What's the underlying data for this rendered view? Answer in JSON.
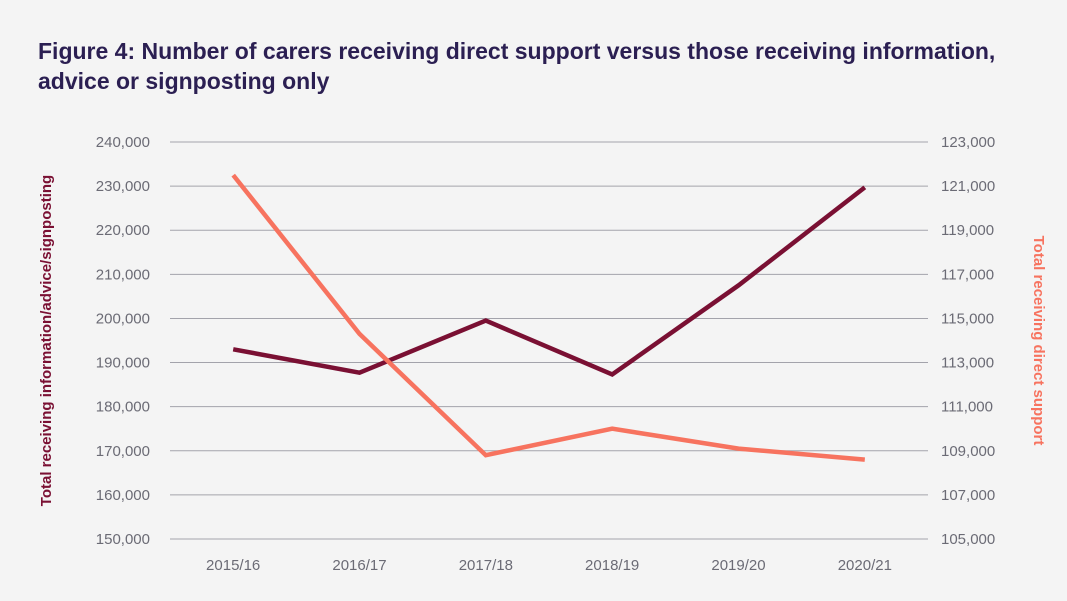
{
  "title": "Figure 4: Number of carers receiving direct support versus those receiving information, advice or signposting only",
  "colors": {
    "left_series": "#7a1033",
    "right_series": "#f7735f",
    "grid": "#a3a3ab",
    "background": "#f4f4f4",
    "title": "#2b1f52"
  },
  "chart_data": {
    "type": "line",
    "categories": [
      "2015/16",
      "2016/17",
      "2017/18",
      "2018/19",
      "2019/20",
      "2020/21"
    ],
    "left_axis": {
      "label": "Total receiving information/advice/signposting",
      "range": [
        150000,
        240000
      ],
      "ticks": [
        "150,000",
        "160,000",
        "170,000",
        "180,000",
        "190,000",
        "200,000",
        "210,000",
        "220,000",
        "230,000",
        "240,000"
      ]
    },
    "right_axis": {
      "label": "Total receiving direct support",
      "range": [
        105000,
        123000
      ],
      "ticks": [
        "105,000",
        "107,000",
        "109,000",
        "111,000",
        "113,000",
        "115,000",
        "117,000",
        "119,000",
        "121,000",
        "123,000"
      ]
    },
    "series": [
      {
        "axis": "left",
        "values": [
          193000,
          187700,
          199500,
          187300,
          207500,
          229700
        ]
      },
      {
        "axis": "right",
        "values": [
          121500,
          114300,
          108800,
          110000,
          109100,
          108600
        ]
      }
    ],
    "grid": true
  }
}
